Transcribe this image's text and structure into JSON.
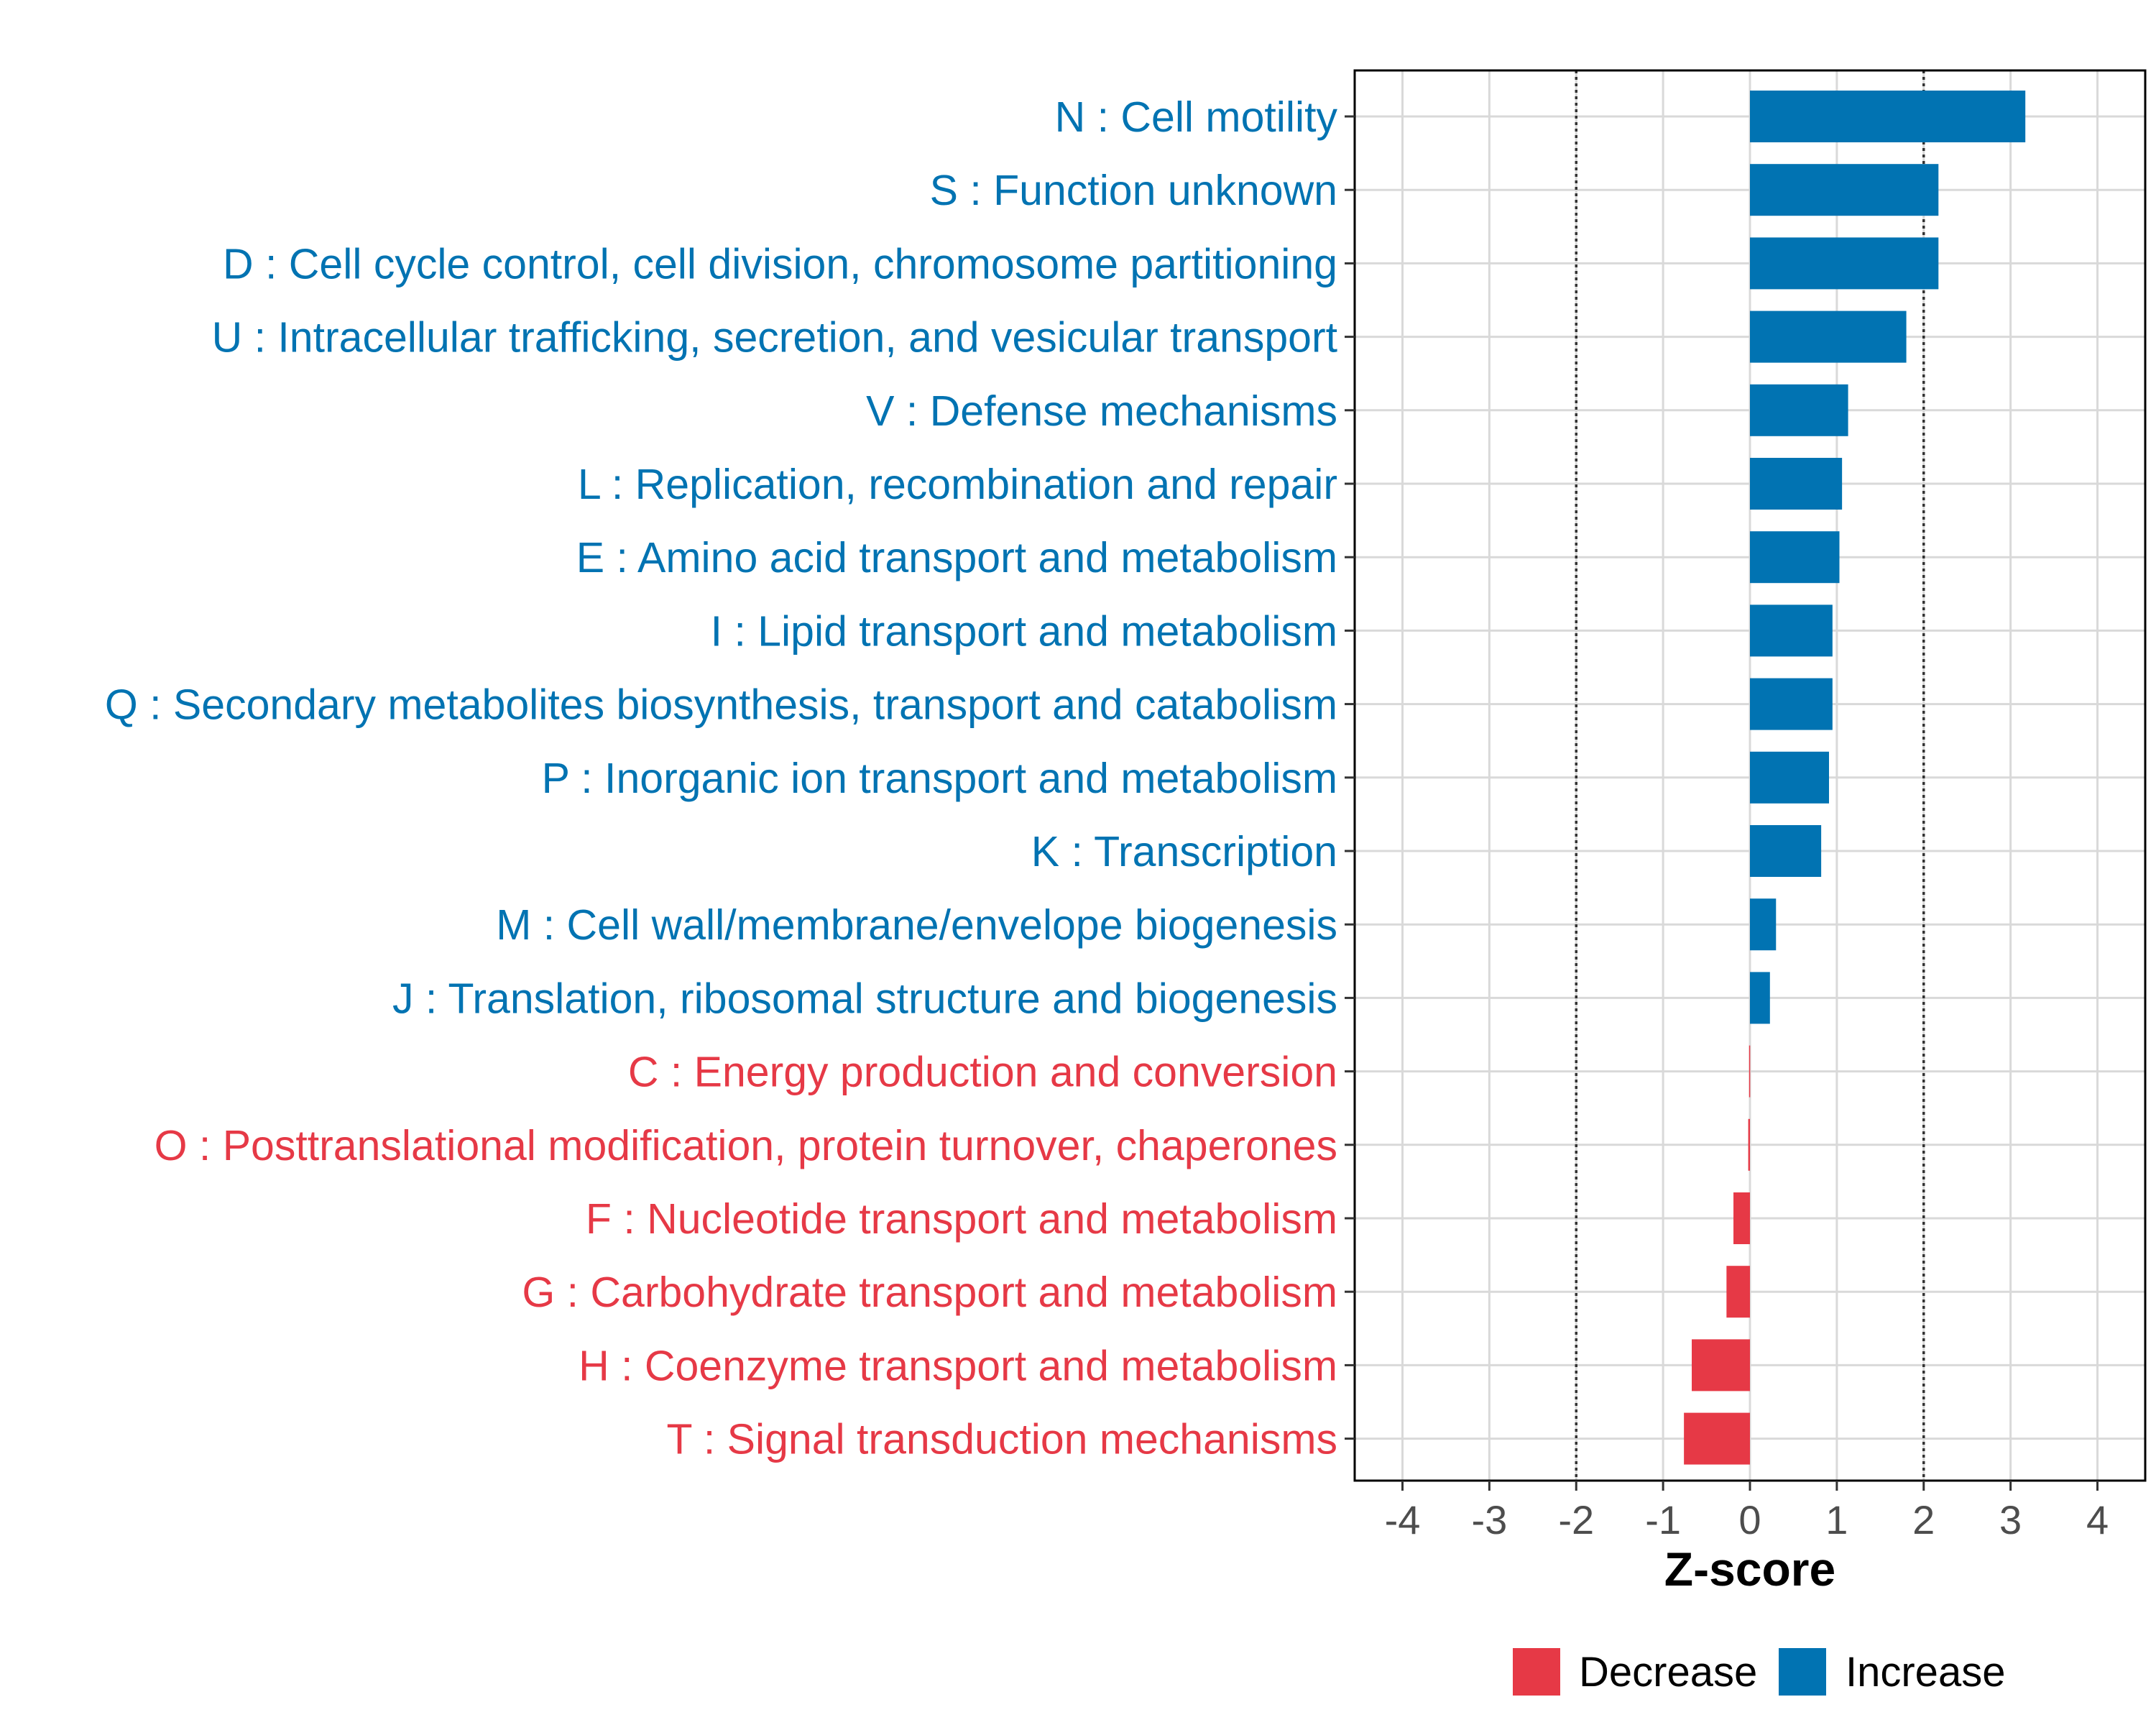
{
  "chart_data": {
    "type": "bar",
    "orientation": "horizontal",
    "categories": [
      "N : Cell motility",
      "S : Function unknown",
      "D : Cell cycle control, cell division, chromosome partitioning",
      "U : Intracellular trafficking, secretion, and vesicular transport",
      "V : Defense mechanisms",
      "L : Replication, recombination and repair",
      "E : Amino acid transport and metabolism",
      "I : Lipid transport and metabolism",
      "Q : Secondary metabolites biosynthesis, transport and catabolism",
      "P : Inorganic ion transport and metabolism",
      "K : Transcription",
      "M : Cell wall/membrane/envelope biogenesis",
      "J : Translation, ribosomal structure and biogenesis",
      "C : Energy production and conversion",
      "O : Posttranslational modification, protein turnover, chaperones",
      "F : Nucleotide transport and metabolism",
      "G : Carbohydrate transport and metabolism",
      "H : Coenzyme transport and metabolism",
      "T : Signal transduction mechanisms"
    ],
    "values": [
      3.17,
      2.17,
      2.17,
      1.8,
      1.13,
      1.06,
      1.03,
      0.95,
      0.95,
      0.91,
      0.82,
      0.3,
      0.23,
      -0.01,
      -0.02,
      -0.19,
      -0.27,
      -0.67,
      -0.76
    ],
    "groups": [
      "Increase",
      "Increase",
      "Increase",
      "Increase",
      "Increase",
      "Increase",
      "Increase",
      "Increase",
      "Increase",
      "Increase",
      "Increase",
      "Increase",
      "Increase",
      "Decrease",
      "Decrease",
      "Decrease",
      "Decrease",
      "Decrease",
      "Decrease"
    ],
    "xlabel": "Z-score",
    "ylabel": "",
    "xlim": [
      -4.55,
      4.55
    ],
    "xticks": [
      -4,
      -3,
      -2,
      -1,
      0,
      1,
      2,
      3,
      4
    ],
    "tick_labels": [
      "-4",
      "-3",
      "-2",
      "-1",
      "0",
      "1",
      "2",
      "3",
      "4"
    ],
    "reference_lines": [
      -2,
      2
    ],
    "grid": true,
    "legend": {
      "position": "bottom",
      "items": [
        {
          "label": "Decrease",
          "color": "#e63946"
        },
        {
          "label": "Increase",
          "color": "#0173b2"
        }
      ]
    },
    "colors": {
      "Increase": "#0173b2",
      "Decrease": "#e63946"
    }
  }
}
